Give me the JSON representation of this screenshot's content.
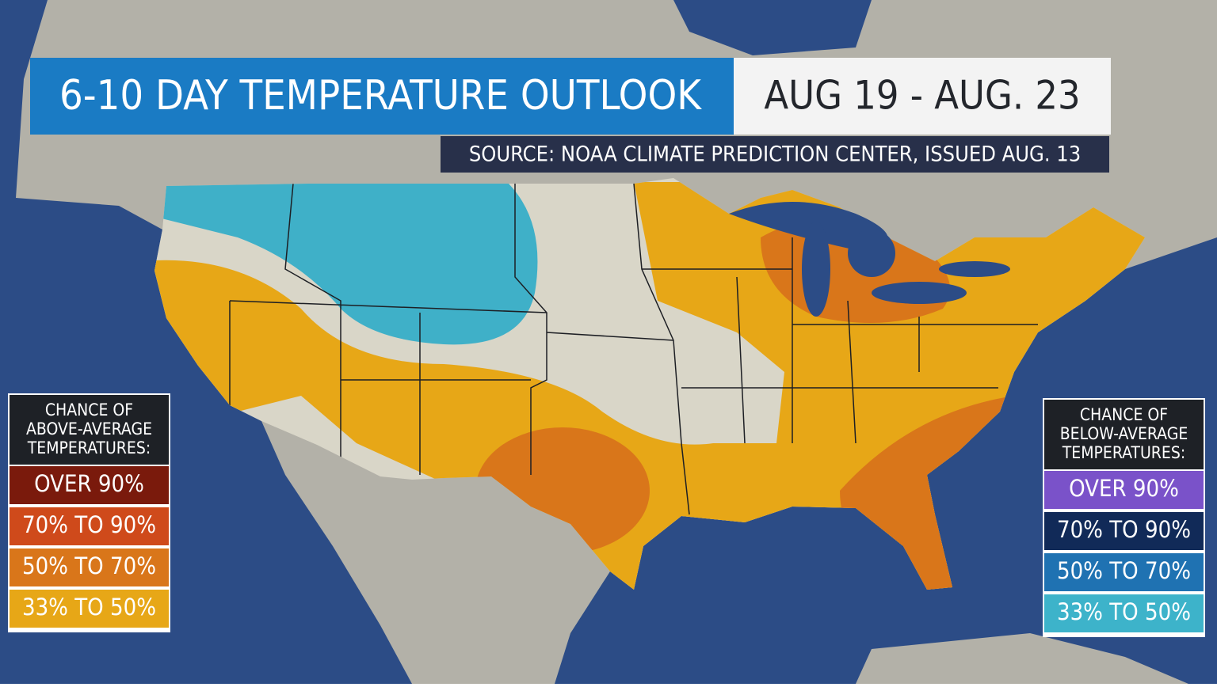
{
  "header": {
    "title": "6-10 DAY TEMPERATURE OUTLOOK",
    "dates": "AUG 19 - AUG. 23",
    "source": "SOURCE: NOAA CLIMATE PREDICTION CENTER, ISSUED AUG. 13"
  },
  "legends": [
    {
      "title": [
        "CHANCE OF",
        "ABOVE-AVERAGE",
        "TEMPERATURES:"
      ],
      "items": [
        {
          "label": "OVER 90%",
          "color": "#7a1a0c"
        },
        {
          "label": "70% TO 90%",
          "color": "#cf4a1b"
        },
        {
          "label": "50% TO 70%",
          "color": "#d9761a"
        },
        {
          "label": "33% TO 50%",
          "color": "#e7a717"
        }
      ]
    },
    {
      "title": [
        "CHANCE OF",
        "BELOW-AVERAGE",
        "TEMPERATURES:"
      ],
      "items": [
        {
          "label": "OVER 90%",
          "color": "#7a52c9"
        },
        {
          "label": "70% TO 90%",
          "color": "#112a58"
        },
        {
          "label": "50% TO 70%",
          "color": "#1f72b2"
        },
        {
          "label": "33% TO 50%",
          "color": "#3db3ca"
        }
      ]
    }
  ]
}
